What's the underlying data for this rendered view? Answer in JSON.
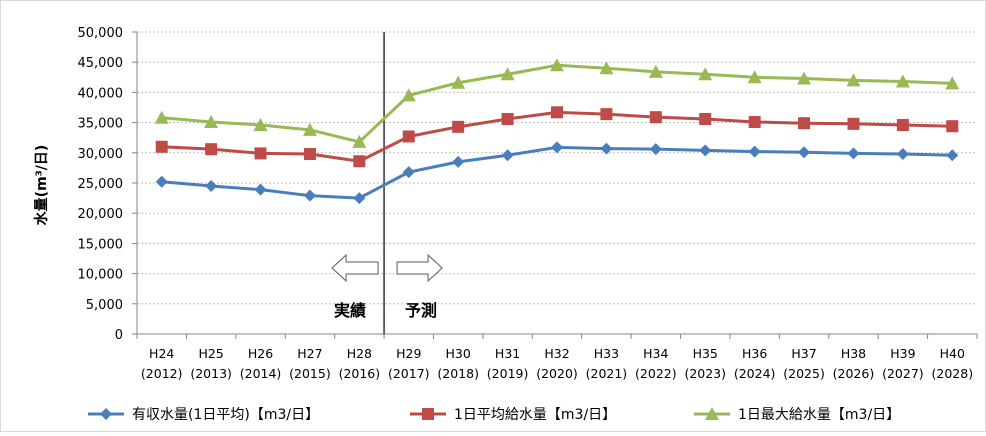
{
  "chart_data": {
    "type": "line",
    "ylabel": "水量(m³/日)",
    "ylim": [
      0,
      50000
    ],
    "yticks": [
      0,
      5000,
      10000,
      15000,
      20000,
      25000,
      30000,
      35000,
      40000,
      45000,
      50000
    ],
    "ytick_labels": [
      "0",
      "5,000",
      "10,000",
      "15,000",
      "20,000",
      "25,000",
      "30,000",
      "35,000",
      "40,000",
      "45,000",
      "50,000"
    ],
    "grid": true,
    "legend_position": "bottom",
    "categories": [
      {
        "line1": "H24",
        "line2": "(2012)"
      },
      {
        "line1": "H25",
        "line2": "(2013)"
      },
      {
        "line1": "H26",
        "line2": "(2014)"
      },
      {
        "line1": "H27",
        "line2": "(2015)"
      },
      {
        "line1": "H28",
        "line2": "(2016)"
      },
      {
        "line1": "H29",
        "line2": "(2017)"
      },
      {
        "line1": "H30",
        "line2": "(2018)"
      },
      {
        "line1": "H31",
        "line2": "(2019)"
      },
      {
        "line1": "H32",
        "line2": "(2020)"
      },
      {
        "line1": "H33",
        "line2": "(2021)"
      },
      {
        "line1": "H34",
        "line2": "(2022)"
      },
      {
        "line1": "H35",
        "line2": "(2023)"
      },
      {
        "line1": "H36",
        "line2": "(2024)"
      },
      {
        "line1": "H37",
        "line2": "(2025)"
      },
      {
        "line1": "H38",
        "line2": "(2026)"
      },
      {
        "line1": "H39",
        "line2": "(2027)"
      },
      {
        "line1": "H40",
        "line2": "(2028)"
      }
    ],
    "series": [
      {
        "name": "有収水量(1日平均)【m3/日】",
        "color": "#4a7ebb",
        "marker": "diamond",
        "values": [
          25200,
          24500,
          23900,
          22900,
          22500,
          26800,
          28500,
          29600,
          30900,
          30700,
          30600,
          30400,
          30200,
          30100,
          29900,
          29800,
          29600
        ]
      },
      {
        "name": "1日平均給水量【m3/日】",
        "color": "#be4b48",
        "marker": "square",
        "values": [
          31000,
          30600,
          29900,
          29800,
          28600,
          32700,
          34300,
          35600,
          36700,
          36400,
          35900,
          35600,
          35100,
          34900,
          34800,
          34600,
          34400
        ]
      },
      {
        "name": "1日最大給水量【m3/日】",
        "color": "#98b954",
        "marker": "triangle",
        "values": [
          35800,
          35100,
          34600,
          33800,
          31800,
          39500,
          41600,
          43000,
          44500,
          44000,
          43400,
          43000,
          42500,
          42300,
          42000,
          41800,
          41500
        ]
      }
    ],
    "annotations": {
      "divider_after_category": 4,
      "actual_label": "実績",
      "forecast_label": "予測"
    }
  }
}
